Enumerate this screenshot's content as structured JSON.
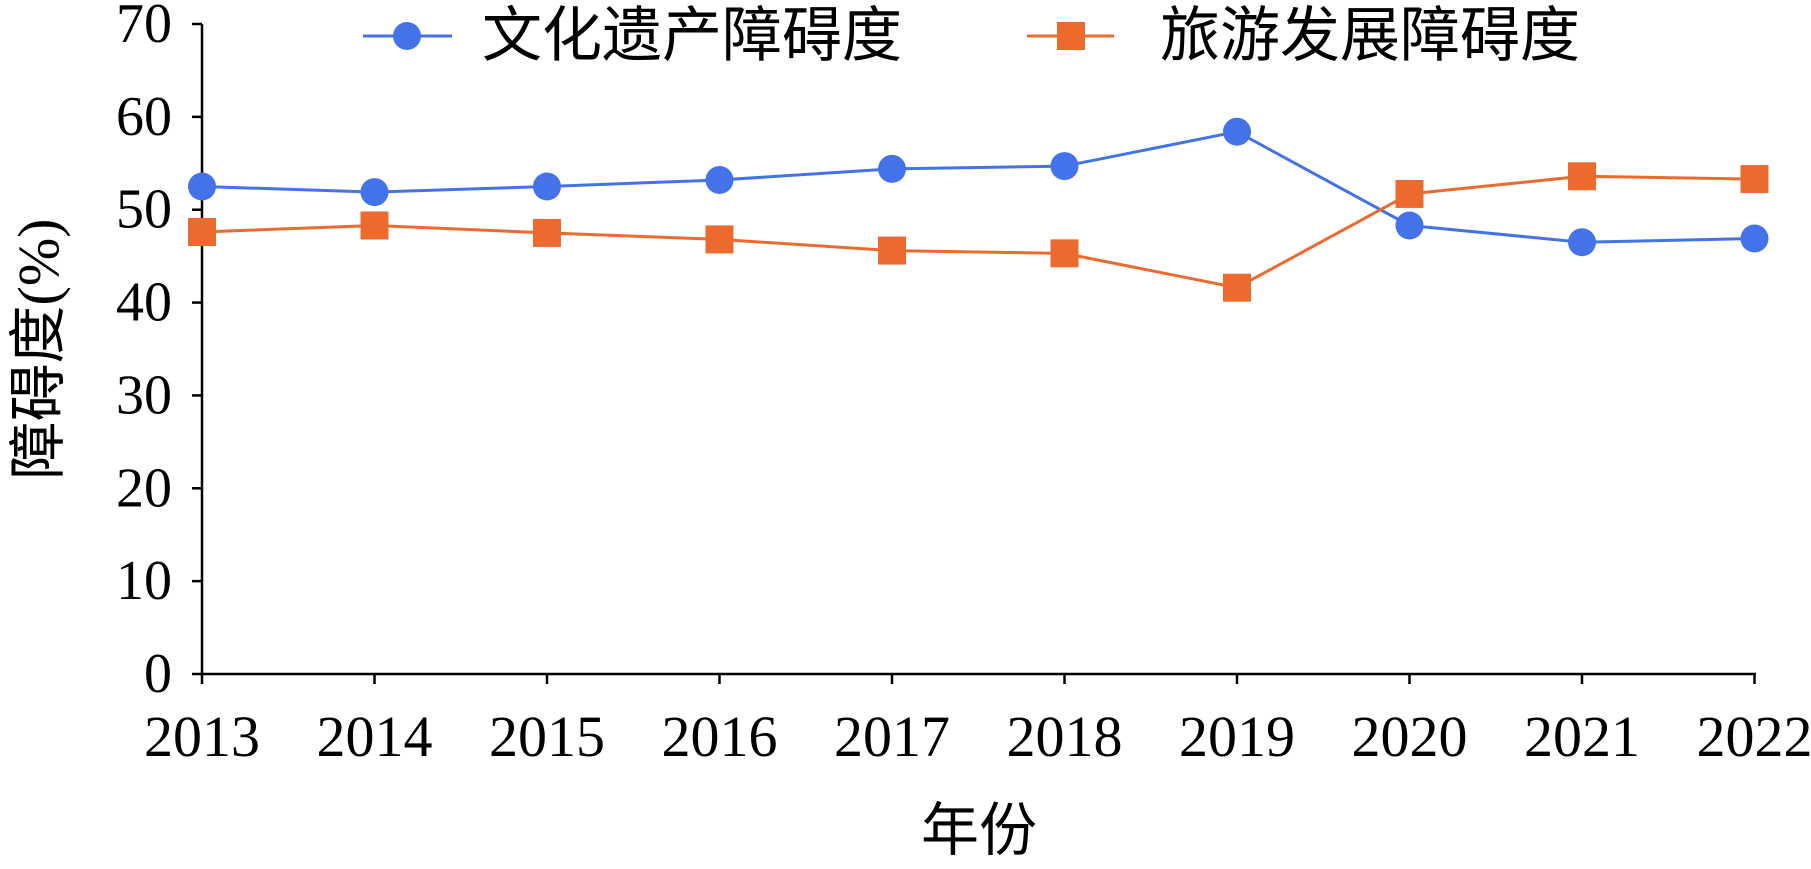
{
  "chart_data": {
    "type": "line",
    "title": "",
    "xlabel": "年份",
    "ylabel": "障碍度(%)",
    "categories": [
      "2013",
      "2014",
      "2015",
      "2016",
      "2017",
      "2018",
      "2019",
      "2020",
      "2021",
      "2022"
    ],
    "ylim": [
      0,
      70
    ],
    "yticks": [
      0,
      10,
      20,
      30,
      40,
      50,
      60,
      70
    ],
    "grid": false,
    "legend_position": "top",
    "series": [
      {
        "name": "文化遗产障碍度",
        "marker": "circle",
        "color": "#4472E8",
        "values": [
          52.5,
          51.9,
          52.5,
          53.2,
          54.4,
          54.7,
          58.4,
          48.3,
          46.5,
          46.9
        ]
      },
      {
        "name": "旅游发展障碍度",
        "marker": "square",
        "color": "#ED6A2E",
        "values": [
          47.6,
          48.3,
          47.5,
          46.8,
          45.6,
          45.3,
          41.6,
          51.7,
          53.6,
          53.3
        ]
      }
    ]
  }
}
